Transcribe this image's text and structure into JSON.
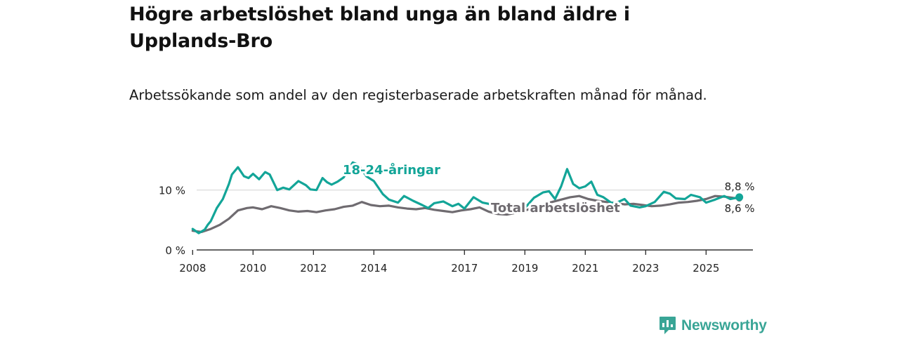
{
  "title": "Högre arbetslöshet bland unga än bland äldre i Upplands-Bro",
  "subtitle": "Arbetssökande som andel av den registerbaserade arbetskraften månad för månad.",
  "brand": {
    "name": "Newsworthy"
  },
  "colors": {
    "youth": "#13a598",
    "total": "#6f6b70",
    "axis": "#333333",
    "grid": "#d7d7d7",
    "brand": "#39a596"
  },
  "chart_data": {
    "type": "line",
    "title": "Högre arbetslöshet bland unga än bland äldre i Upplands-Bro",
    "xlabel": "",
    "ylabel": "",
    "ylim": [
      0,
      15
    ],
    "xlim": [
      2007.9,
      2026.55
    ],
    "yticks": [
      0,
      10
    ],
    "ytick_labels": [
      "0 %",
      "10 %"
    ],
    "xticks": [
      2008,
      2010,
      2012,
      2014,
      2017,
      2019,
      2021,
      2023,
      2025
    ],
    "grid": true,
    "series": [
      {
        "name": "18-24-åringar",
        "label": "18-24-åringar",
        "color": "#13a598",
        "end_label": "8,8 %",
        "x": [
          2008.0,
          2008.2,
          2008.4,
          2008.5,
          2008.6,
          2008.8,
          2009.0,
          2009.2,
          2009.3,
          2009.5,
          2009.7,
          2009.85,
          2010.0,
          2010.2,
          2010.4,
          2010.55,
          2010.8,
          2011.0,
          2011.2,
          2011.5,
          2011.75,
          2011.9,
          2012.1,
          2012.3,
          2012.45,
          2012.6,
          2012.8,
          2013.0,
          2013.3,
          2013.5,
          2013.75,
          2014.0,
          2014.3,
          2014.5,
          2014.8,
          2015.0,
          2015.3,
          2015.6,
          2015.8,
          2016.0,
          2016.3,
          2016.6,
          2016.8,
          2017.0,
          2017.3,
          2017.6,
          2017.8,
          2018.0,
          2018.3,
          2018.6,
          2018.8,
          2019.0,
          2019.3,
          2019.6,
          2019.8,
          2020.0,
          2020.2,
          2020.4,
          2020.6,
          2020.8,
          2021.0,
          2021.2,
          2021.4,
          2021.6,
          2021.85,
          2022.0,
          2022.3,
          2022.5,
          2022.8,
          2023.0,
          2023.3,
          2023.6,
          2023.8,
          2024.0,
          2024.3,
          2024.5,
          2024.8,
          2025.0,
          2025.3,
          2025.6,
          2025.8,
          2026.1
        ],
        "values": [
          3.5,
          2.8,
          3.4,
          4.2,
          4.8,
          7.0,
          8.5,
          11.0,
          12.6,
          13.8,
          12.3,
          12.0,
          12.7,
          11.8,
          13.0,
          12.6,
          10.0,
          10.4,
          10.1,
          11.5,
          10.8,
          10.1,
          10.0,
          12.0,
          11.3,
          10.9,
          11.4,
          12.1,
          14.6,
          14.2,
          12.3,
          11.5,
          9.3,
          8.4,
          7.9,
          9.0,
          8.2,
          7.5,
          7.0,
          7.8,
          8.1,
          7.3,
          7.7,
          6.9,
          8.8,
          7.9,
          7.7,
          7.2,
          6.8,
          7.0,
          6.2,
          7.0,
          8.7,
          9.6,
          9.8,
          8.5,
          10.6,
          13.5,
          11.0,
          10.3,
          10.6,
          11.4,
          9.2,
          8.8,
          7.9,
          7.8,
          8.5,
          7.4,
          7.1,
          7.3,
          8.0,
          9.7,
          9.4,
          8.6,
          8.5,
          9.2,
          8.8,
          7.9,
          8.4,
          9.0,
          8.5,
          8.8
        ]
      },
      {
        "name": "Total arbetslöshet",
        "label": "Total arbetslöshet",
        "color": "#6f6b70",
        "end_label": "8,6 %",
        "x": [
          2008.0,
          2008.3,
          2008.6,
          2008.9,
          2009.2,
          2009.5,
          2009.8,
          2010.0,
          2010.3,
          2010.6,
          2010.9,
          2011.2,
          2011.5,
          2011.8,
          2012.1,
          2012.4,
          2012.7,
          2013.0,
          2013.3,
          2013.6,
          2013.9,
          2014.2,
          2014.5,
          2014.8,
          2015.1,
          2015.4,
          2015.7,
          2016.0,
          2016.3,
          2016.6,
          2016.9,
          2017.2,
          2017.5,
          2017.8,
          2018.1,
          2018.4,
          2018.7,
          2019.0,
          2019.3,
          2019.6,
          2019.9,
          2020.2,
          2020.5,
          2020.8,
          2021.1,
          2021.4,
          2021.7,
          2022.0,
          2022.3,
          2022.6,
          2022.9,
          2023.2,
          2023.5,
          2023.8,
          2024.1,
          2024.4,
          2024.7,
          2025.0,
          2025.3,
          2025.6,
          2025.9,
          2026.1
        ],
        "values": [
          3.2,
          3.0,
          3.5,
          4.2,
          5.2,
          6.6,
          7.0,
          7.1,
          6.8,
          7.3,
          7.0,
          6.6,
          6.4,
          6.5,
          6.3,
          6.6,
          6.8,
          7.2,
          7.4,
          8.0,
          7.5,
          7.3,
          7.4,
          7.1,
          6.9,
          6.8,
          7.0,
          6.7,
          6.5,
          6.3,
          6.6,
          6.8,
          7.1,
          6.4,
          6.0,
          5.9,
          6.2,
          6.6,
          7.0,
          7.6,
          8.0,
          8.4,
          8.8,
          9.0,
          8.5,
          8.2,
          8.0,
          7.8,
          7.6,
          7.7,
          7.5,
          7.3,
          7.4,
          7.6,
          7.9,
          8.0,
          8.2,
          8.5,
          9.0,
          8.9,
          8.7,
          8.6
        ]
      }
    ]
  }
}
